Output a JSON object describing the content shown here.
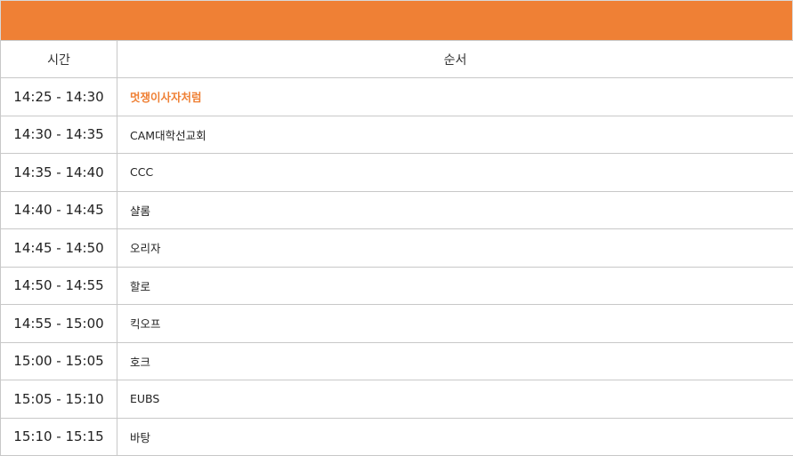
{
  "accent_color": "#ef8035",
  "header": {
    "time_label": "시간",
    "order_label": "순서"
  },
  "rows": [
    {
      "time": "14:25 - 14:30",
      "act": "멋쟁이사자처럼",
      "highlighted": true
    },
    {
      "time": "14:30 - 14:35",
      "act": "CAM대학선교회",
      "highlighted": false
    },
    {
      "time": "14:35 - 14:40",
      "act": "CCC",
      "highlighted": false
    },
    {
      "time": "14:40 - 14:45",
      "act": "샬롬",
      "highlighted": false
    },
    {
      "time": "14:45 - 14:50",
      "act": "오리자",
      "highlighted": false
    },
    {
      "time": "14:50 - 14:55",
      "act": "할로",
      "highlighted": false
    },
    {
      "time": "14:55 - 15:00",
      "act": "킥오프",
      "highlighted": false
    },
    {
      "time": "15:00 - 15:05",
      "act": "호크",
      "highlighted": false
    },
    {
      "time": "15:05 - 15:10",
      "act": "EUBS",
      "highlighted": false
    },
    {
      "time": "15:10 - 15:15",
      "act": "바탕",
      "highlighted": false
    }
  ]
}
